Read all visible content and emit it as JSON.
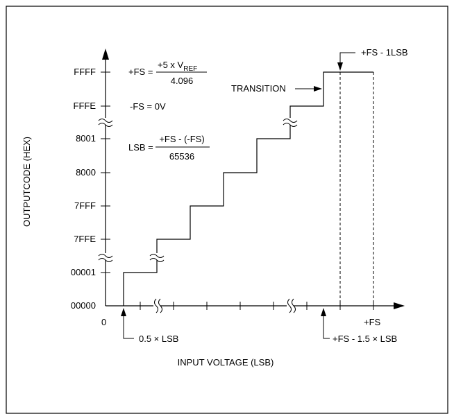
{
  "y_axis": {
    "title": "OUTPUTCODE (HEX)",
    "ticks": [
      "FFFF",
      "FFFE",
      "8001",
      "8000",
      "7FFF",
      "7FFE",
      "00001",
      "00000"
    ]
  },
  "x_axis": {
    "title": "INPUT VOLTAGE (LSB)",
    "origin": "0",
    "fs_label": "+FS"
  },
  "equations": {
    "fs_lhs": "+FS =",
    "fs_num_main": "+5 x V",
    "fs_num_sub": "REF",
    "fs_den": "4.096",
    "minus_fs": "-FS = 0V",
    "lsb_lhs": "LSB =",
    "lsb_num": "+FS - (-FS)",
    "lsb_den": "65536"
  },
  "annotations": {
    "transition": "TRANSITION",
    "fs_minus_1lsb": "+FS - 1LSB",
    "half_lsb": "0.5 × LSB",
    "fs_minus_1_5lsb": "+FS - 1.5 × LSB"
  }
}
